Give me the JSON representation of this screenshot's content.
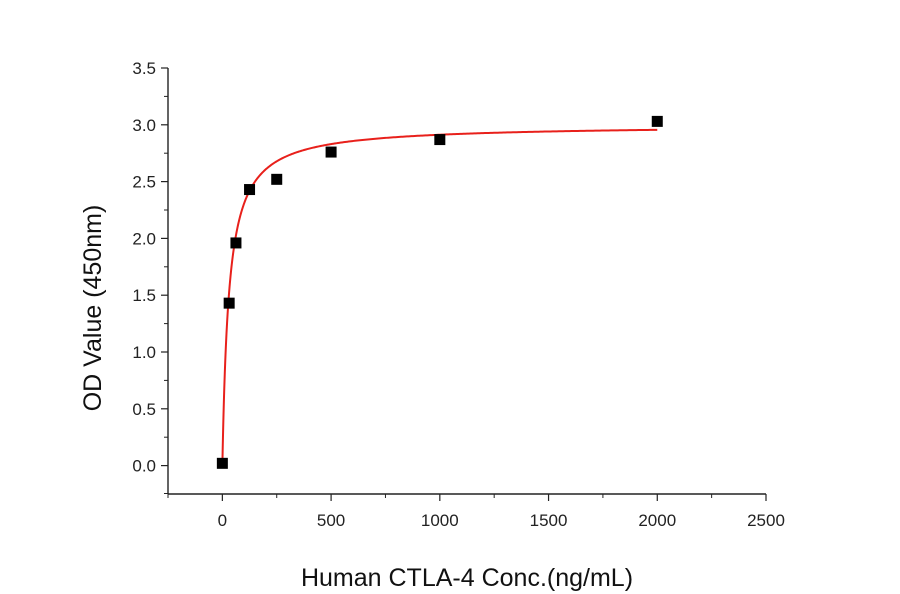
{
  "chart_data": {
    "type": "scatter",
    "title": "",
    "xlabel": "Human CTLA-4 Conc.(ng/mL)",
    "ylabel": "OD Value (450nm)",
    "xlim": [
      -250,
      2500
    ],
    "ylim": [
      -0.25,
      3.5
    ],
    "x_ticks": [
      0,
      500,
      1000,
      1500,
      2000,
      2500
    ],
    "y_ticks": [
      0.0,
      0.5,
      1.0,
      1.5,
      2.0,
      2.5,
      3.0,
      3.5
    ],
    "x_tick_labels": [
      "0",
      "500",
      "1000",
      "1500",
      "2000",
      "2500"
    ],
    "y_tick_labels": [
      "0.0",
      "0.5",
      "1.0",
      "1.5",
      "2.0",
      "2.5",
      "3.0",
      "3.5"
    ],
    "grid": false,
    "legend": "none",
    "points": {
      "x": [
        0,
        31.25,
        62.5,
        125,
        250,
        500,
        1000,
        2000
      ],
      "y": [
        0.02,
        1.43,
        1.96,
        2.43,
        2.52,
        2.76,
        2.87,
        3.03
      ]
    },
    "fit_curve": {
      "type": "hyperbolic",
      "bmax": 3.0,
      "kd": 30,
      "x_range": [
        0,
        2000
      ]
    },
    "colors": {
      "points": "#000000",
      "fit": "#e8201b",
      "axes": "#222222"
    }
  }
}
